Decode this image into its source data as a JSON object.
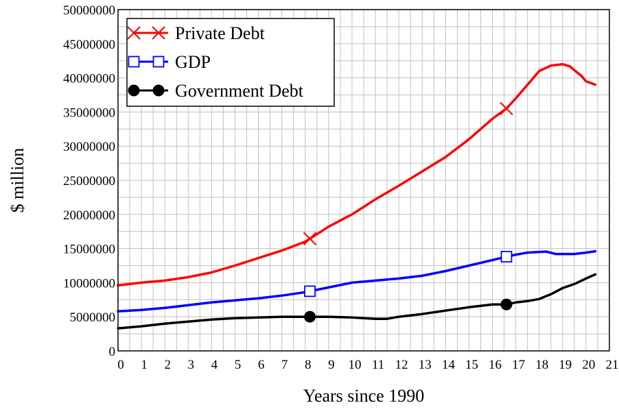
{
  "chart_data": {
    "type": "line",
    "title": "",
    "xlabel": "Years since 1990",
    "ylabel": "$ million",
    "xlim": [
      0,
      21
    ],
    "ylim": [
      0,
      50000000
    ],
    "x_ticks": [
      0,
      1,
      2,
      3,
      4,
      5,
      6,
      7,
      8,
      9,
      10,
      11,
      12,
      13,
      14,
      15,
      16,
      17,
      18,
      19,
      20,
      21
    ],
    "y_ticks": [
      0,
      5000000,
      10000000,
      15000000,
      20000000,
      25000000,
      30000000,
      35000000,
      40000000,
      45000000,
      50000000
    ],
    "grid": true,
    "legend_position": "top-left",
    "series": [
      {
        "name": "Private Debt",
        "color": "#ff0000",
        "marker": "x",
        "marker_x": [
          8.2,
          16.6
        ],
        "points": [
          [
            0,
            9600000
          ],
          [
            1,
            10000000
          ],
          [
            2,
            10300000
          ],
          [
            3,
            10800000
          ],
          [
            4,
            11500000
          ],
          [
            5,
            12500000
          ],
          [
            6,
            13600000
          ],
          [
            7,
            14700000
          ],
          [
            8,
            16000000
          ],
          [
            9,
            18200000
          ],
          [
            10,
            20000000
          ],
          [
            11,
            22200000
          ],
          [
            12,
            24200000
          ],
          [
            13,
            26300000
          ],
          [
            14,
            28400000
          ],
          [
            15,
            31000000
          ],
          [
            16,
            34000000
          ],
          [
            16.6,
            35500000
          ],
          [
            17,
            37000000
          ],
          [
            17.5,
            39000000
          ],
          [
            18,
            41000000
          ],
          [
            18.5,
            41800000
          ],
          [
            19,
            42000000
          ],
          [
            19.3,
            41700000
          ],
          [
            19.8,
            40300000
          ],
          [
            20,
            39500000
          ],
          [
            20.4,
            39000000
          ]
        ]
      },
      {
        "name": "GDP",
        "color": "#0000ff",
        "marker": "square",
        "marker_x": [
          8.2,
          16.6
        ],
        "points": [
          [
            0,
            5800000
          ],
          [
            1,
            6000000
          ],
          [
            2,
            6300000
          ],
          [
            3,
            6700000
          ],
          [
            4,
            7100000
          ],
          [
            5,
            7400000
          ],
          [
            6,
            7700000
          ],
          [
            7,
            8100000
          ],
          [
            8,
            8600000
          ],
          [
            9,
            9300000
          ],
          [
            10,
            10000000
          ],
          [
            11,
            10300000
          ],
          [
            12,
            10600000
          ],
          [
            13,
            11000000
          ],
          [
            14,
            11700000
          ],
          [
            15,
            12500000
          ],
          [
            16,
            13300000
          ],
          [
            16.6,
            13800000
          ],
          [
            17,
            14100000
          ],
          [
            17.5,
            14400000
          ],
          [
            18,
            14500000
          ],
          [
            18.3,
            14550000
          ],
          [
            18.7,
            14200000
          ],
          [
            19.5,
            14200000
          ],
          [
            20,
            14400000
          ],
          [
            20.4,
            14600000
          ]
        ]
      },
      {
        "name": "Government Debt",
        "color": "#000000",
        "marker": "circle",
        "marker_x": [
          8.2,
          16.6
        ],
        "points": [
          [
            0,
            3300000
          ],
          [
            1,
            3600000
          ],
          [
            2,
            4000000
          ],
          [
            3,
            4300000
          ],
          [
            4,
            4600000
          ],
          [
            5,
            4800000
          ],
          [
            6,
            4900000
          ],
          [
            7,
            5000000
          ],
          [
            8,
            5000000
          ],
          [
            9,
            5000000
          ],
          [
            10,
            4900000
          ],
          [
            11,
            4700000
          ],
          [
            11.5,
            4700000
          ],
          [
            12,
            5000000
          ],
          [
            13,
            5400000
          ],
          [
            14,
            5900000
          ],
          [
            15,
            6400000
          ],
          [
            16,
            6800000
          ],
          [
            16.6,
            6800000
          ],
          [
            17,
            7100000
          ],
          [
            17.5,
            7300000
          ],
          [
            18,
            7600000
          ],
          [
            18.5,
            8300000
          ],
          [
            19,
            9200000
          ],
          [
            19.5,
            9800000
          ],
          [
            20,
            10600000
          ],
          [
            20.4,
            11200000
          ]
        ]
      }
    ]
  }
}
